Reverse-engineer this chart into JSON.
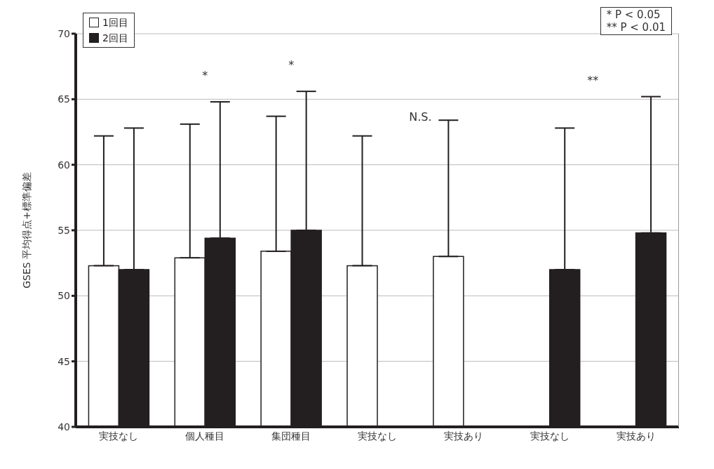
{
  "chart_data": {
    "type": "bar",
    "ylabel": "GSES 平均得点+標準偏差",
    "categories": [
      "実技なし",
      "個人種目",
      "集団種目",
      "実技なし",
      "実技あり",
      "実技なし",
      "実技あり"
    ],
    "series": [
      {
        "name": "1回目",
        "color": "#ffffff",
        "values": [
          52.3,
          52.9,
          53.4,
          52.3,
          53.0,
          null,
          null
        ],
        "errors": [
          [
            52.3,
            62.2
          ],
          [
            52.9,
            63.1
          ],
          [
            53.4,
            63.7
          ],
          [
            52.3,
            62.2
          ],
          [
            53.0,
            63.4
          ],
          null,
          null
        ]
      },
      {
        "name": "2回目",
        "color": "#231f20",
        "values": [
          52.0,
          54.4,
          55.0,
          null,
          null,
          52.0,
          54.8
        ],
        "errors": [
          [
            52.0,
            62.8
          ],
          [
            54.4,
            64.8
          ],
          [
            55.0,
            65.6
          ],
          null,
          null,
          [
            52.0,
            62.8
          ],
          [
            54.8,
            65.2
          ]
        ]
      }
    ],
    "ylim": [
      40,
      70
    ],
    "yticks": [
      40,
      45,
      50,
      55,
      60,
      65,
      70
    ],
    "grid": "y",
    "legend": "top left",
    "annotations": [
      "*",
      "*",
      "N.S.",
      "**",
      "* P < 0.05",
      "** P < 0.01"
    ]
  }
}
